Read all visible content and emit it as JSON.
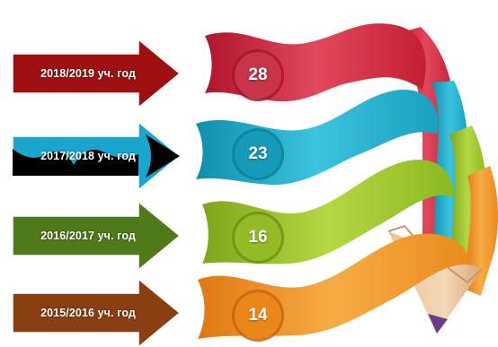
{
  "rows": [
    {
      "label": "2018/2019 уч. год",
      "value": "28",
      "color": "#9e1010",
      "ribbon": "#c8283c"
    },
    {
      "label": "2017/2018 уч. год",
      "value": "23",
      "color": "#1aa5cf",
      "ribbon": "#16a2c2"
    },
    {
      "label": "2016/2017 уч. год",
      "value": "16",
      "color": "#4f7a1a",
      "ribbon": "#8fba24"
    },
    {
      "label": "2015/2016 уч. год",
      "value": "14",
      "color": "#8a3f12",
      "ribbon": "#ee8e1c"
    }
  ]
}
